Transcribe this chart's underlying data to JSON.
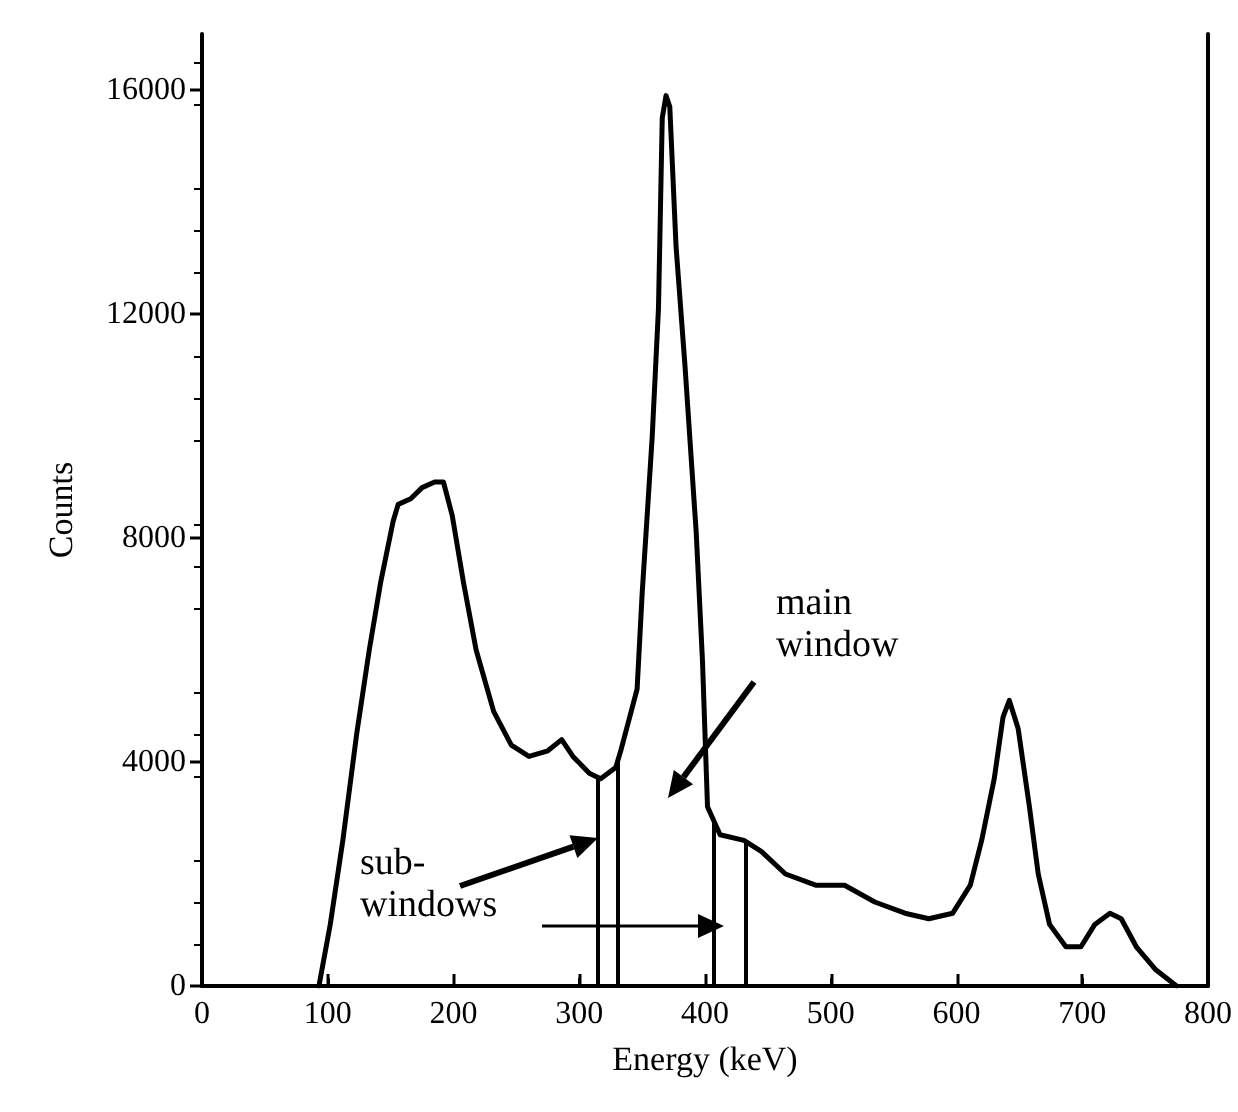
{
  "chart_data": {
    "type": "line",
    "xlabel": "Energy (keV)",
    "ylabel": "Counts",
    "xlim": [
      0,
      800
    ],
    "xticks": [
      0,
      100,
      200,
      300,
      400,
      500,
      600,
      700,
      800
    ],
    "ylim": [
      0,
      17000
    ],
    "yticks": [
      0,
      4000,
      8000,
      12000,
      16000
    ],
    "series": [
      {
        "color": "#000000",
        "x": [
          93,
          102,
          112,
          123,
          133,
          142,
          152,
          156,
          166,
          175,
          185,
          192,
          199,
          208,
          218,
          232,
          246,
          260,
          275,
          286,
          295,
          308,
          317,
          329,
          333,
          346,
          350,
          358,
          363,
          366,
          369,
          372,
          377,
          384,
          393,
          398,
          402,
          412,
          431,
          445,
          464,
          488,
          511,
          535,
          559,
          578,
          597,
          611,
          620,
          630,
          637,
          642,
          649,
          658,
          665,
          674,
          687,
          699,
          710,
          722,
          731,
          743,
          758,
          775
        ],
        "values": [
          0,
          1100,
          2600,
          4500,
          6000,
          7200,
          8300,
          8600,
          8700,
          8900,
          9000,
          9000,
          8400,
          7200,
          6000,
          4900,
          4300,
          4100,
          4200,
          4400,
          4100,
          3800,
          3700,
          3900,
          4200,
          5300,
          7000,
          9800,
          12100,
          15500,
          15900,
          15700,
          13200,
          11100,
          8100,
          5800,
          3200,
          2700,
          2600,
          2400,
          2000,
          1800,
          1800,
          1500,
          1300,
          1200,
          1300,
          1800,
          2600,
          3700,
          4800,
          5100,
          4600,
          3200,
          2000,
          1100,
          700,
          700,
          1100,
          1300,
          1200,
          700,
          300,
          0
        ]
      }
    ],
    "ref_lines": [
      {
        "axis": "x",
        "value": 315
      },
      {
        "axis": "x",
        "value": 331
      },
      {
        "axis": "x",
        "value": 407
      },
      {
        "axis": "x",
        "value": 433
      }
    ],
    "annotations": [
      "main window",
      "sub-windows"
    ]
  }
}
